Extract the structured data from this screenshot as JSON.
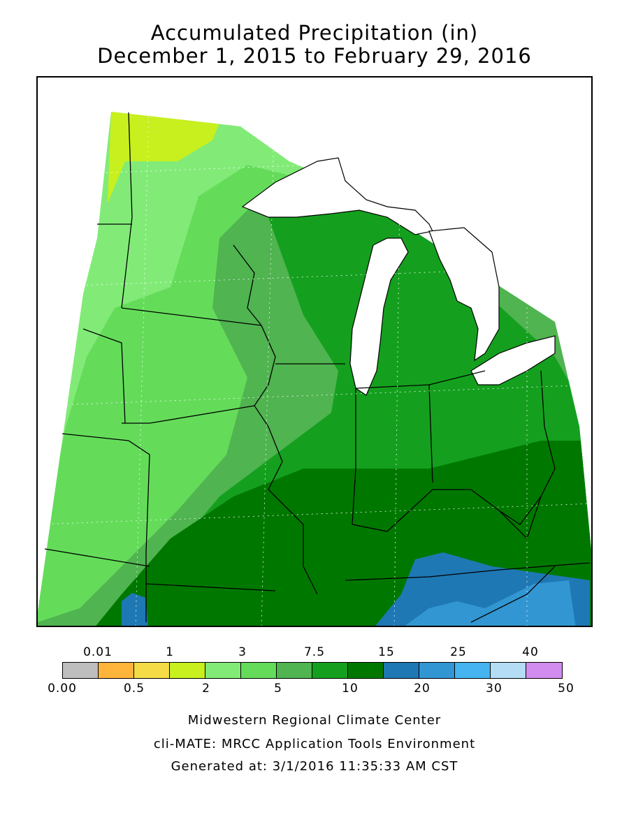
{
  "title": "Accumulated Precipitation (in)",
  "subtitle": "December 1, 2015 to February 29, 2016",
  "legend": {
    "colors": [
      "#bebebe",
      "#ffb43c",
      "#f5dc46",
      "#c8f01e",
      "#82eb78",
      "#64dc5a",
      "#50b450",
      "#14a01e",
      "#007800",
      "#1e78b4",
      "#3296d2",
      "#46b4f0",
      "#b4dcf5",
      "#d28cf0"
    ],
    "top_labels": [
      "0.01",
      "1",
      "3",
      "7.5",
      "15",
      "25",
      "40"
    ],
    "bottom_labels": [
      "0.00",
      "0.5",
      "2",
      "5",
      "10",
      "20",
      "30",
      "50"
    ]
  },
  "footer": {
    "line1": "Midwestern Regional Climate Center",
    "line2": "cli-MATE: MRCC Application Tools Environment",
    "line3": "Generated at: 3/1/2016 11:35:33 AM CST"
  }
}
